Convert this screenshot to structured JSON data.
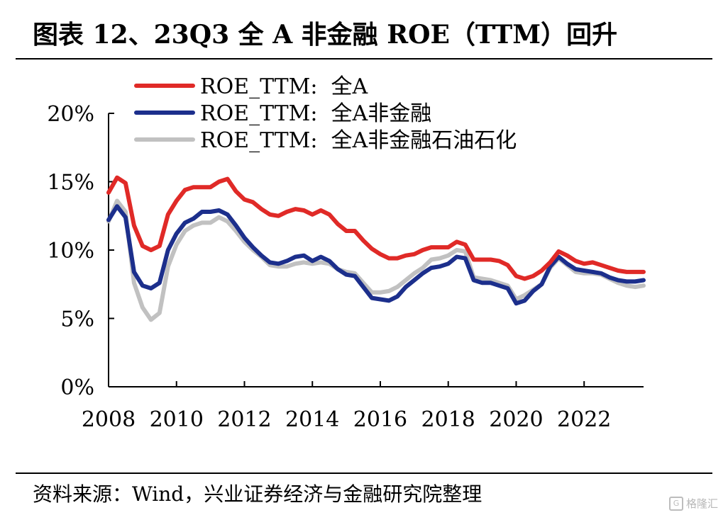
{
  "header": {
    "title": "图表 12、23Q3 全 A 非金融 ROE（TTM）回升"
  },
  "footer": {
    "source": "资料来源：Wind，兴业证券经济与金融研究院整理",
    "watermark": "格隆汇"
  },
  "chart_data": {
    "type": "line",
    "title": "",
    "xlabel": "",
    "ylabel": "",
    "x_ticks": [
      "2008",
      "2010",
      "2012",
      "2014",
      "2016",
      "2018",
      "2020",
      "2022"
    ],
    "y_ticks": [
      "0%",
      "5%",
      "10%",
      "15%",
      "20%"
    ],
    "xlim": [
      2008,
      2023.75
    ],
    "ylim": [
      0,
      20
    ],
    "legend_position": "top",
    "grid": false,
    "x": [
      2008.0,
      2008.25,
      2008.5,
      2008.75,
      2009.0,
      2009.25,
      2009.5,
      2009.75,
      2010.0,
      2010.25,
      2010.5,
      2010.75,
      2011.0,
      2011.25,
      2011.5,
      2011.75,
      2012.0,
      2012.25,
      2012.5,
      2012.75,
      2013.0,
      2013.25,
      2013.5,
      2013.75,
      2014.0,
      2014.25,
      2014.5,
      2014.75,
      2015.0,
      2015.25,
      2015.5,
      2015.75,
      2016.0,
      2016.25,
      2016.5,
      2016.75,
      2017.0,
      2017.25,
      2017.5,
      2017.75,
      2018.0,
      2018.25,
      2018.5,
      2018.75,
      2019.0,
      2019.25,
      2019.5,
      2019.75,
      2020.0,
      2020.25,
      2020.5,
      2020.75,
      2021.0,
      2021.25,
      2021.5,
      2021.75,
      2022.0,
      2022.25,
      2022.5,
      2022.75,
      2023.0,
      2023.25,
      2023.5,
      2023.75
    ],
    "series": [
      {
        "name": "ROE_TTM:  全A",
        "color": "#e02a27",
        "values": [
          14.2,
          15.3,
          14.9,
          11.8,
          10.3,
          10.0,
          10.3,
          12.6,
          13.6,
          14.4,
          14.6,
          14.6,
          14.6,
          15.0,
          15.2,
          14.3,
          13.7,
          13.5,
          13.0,
          12.6,
          12.5,
          12.8,
          13.0,
          12.9,
          12.6,
          12.9,
          12.6,
          11.9,
          11.4,
          11.4,
          10.7,
          10.1,
          9.7,
          9.4,
          9.4,
          9.6,
          9.7,
          10.0,
          10.2,
          10.2,
          10.2,
          10.6,
          10.4,
          9.3,
          9.3,
          9.3,
          9.2,
          8.9,
          8.1,
          7.9,
          8.1,
          8.5,
          9.1,
          9.9,
          9.6,
          9.2,
          9.0,
          9.1,
          8.9,
          8.7,
          8.5,
          8.4,
          8.4,
          8.4
        ]
      },
      {
        "name": "ROE_TTM:  全A非金融",
        "color": "#1c2f8c",
        "values": [
          12.2,
          13.2,
          12.4,
          8.4,
          7.4,
          7.2,
          7.6,
          10.0,
          11.2,
          12.0,
          12.3,
          12.8,
          12.8,
          12.9,
          12.6,
          11.8,
          10.9,
          10.2,
          9.6,
          9.1,
          9.0,
          9.2,
          9.5,
          9.6,
          9.2,
          9.5,
          9.2,
          8.6,
          8.2,
          8.1,
          7.3,
          6.5,
          6.4,
          6.3,
          6.6,
          7.3,
          7.8,
          8.3,
          8.7,
          8.8,
          9.0,
          9.5,
          9.4,
          7.8,
          7.6,
          7.6,
          7.4,
          7.2,
          6.1,
          6.3,
          7.0,
          7.5,
          8.8,
          9.5,
          9.0,
          8.6,
          8.5,
          8.4,
          8.3,
          8.0,
          7.8,
          7.7,
          7.7,
          7.8
        ]
      },
      {
        "name": "ROE_TTM:  全A非金融石油石化",
        "color": "#c1c1c1",
        "values": [
          12.1,
          13.6,
          12.8,
          7.6,
          5.8,
          4.9,
          5.4,
          8.8,
          10.4,
          11.4,
          11.8,
          12.0,
          12.0,
          12.4,
          12.1,
          11.4,
          10.6,
          10.0,
          9.5,
          8.9,
          8.8,
          8.8,
          9.0,
          9.1,
          9.0,
          9.1,
          9.0,
          8.6,
          8.4,
          8.3,
          7.6,
          6.9,
          6.9,
          7.0,
          7.3,
          7.8,
          8.3,
          8.7,
          9.3,
          9.4,
          9.6,
          10.0,
          9.9,
          8.0,
          7.9,
          7.8,
          7.6,
          7.4,
          6.4,
          6.7,
          7.1,
          7.5,
          8.7,
          9.4,
          8.9,
          8.4,
          8.3,
          8.3,
          8.2,
          7.9,
          7.6,
          7.4,
          7.3,
          7.4
        ]
      }
    ]
  }
}
